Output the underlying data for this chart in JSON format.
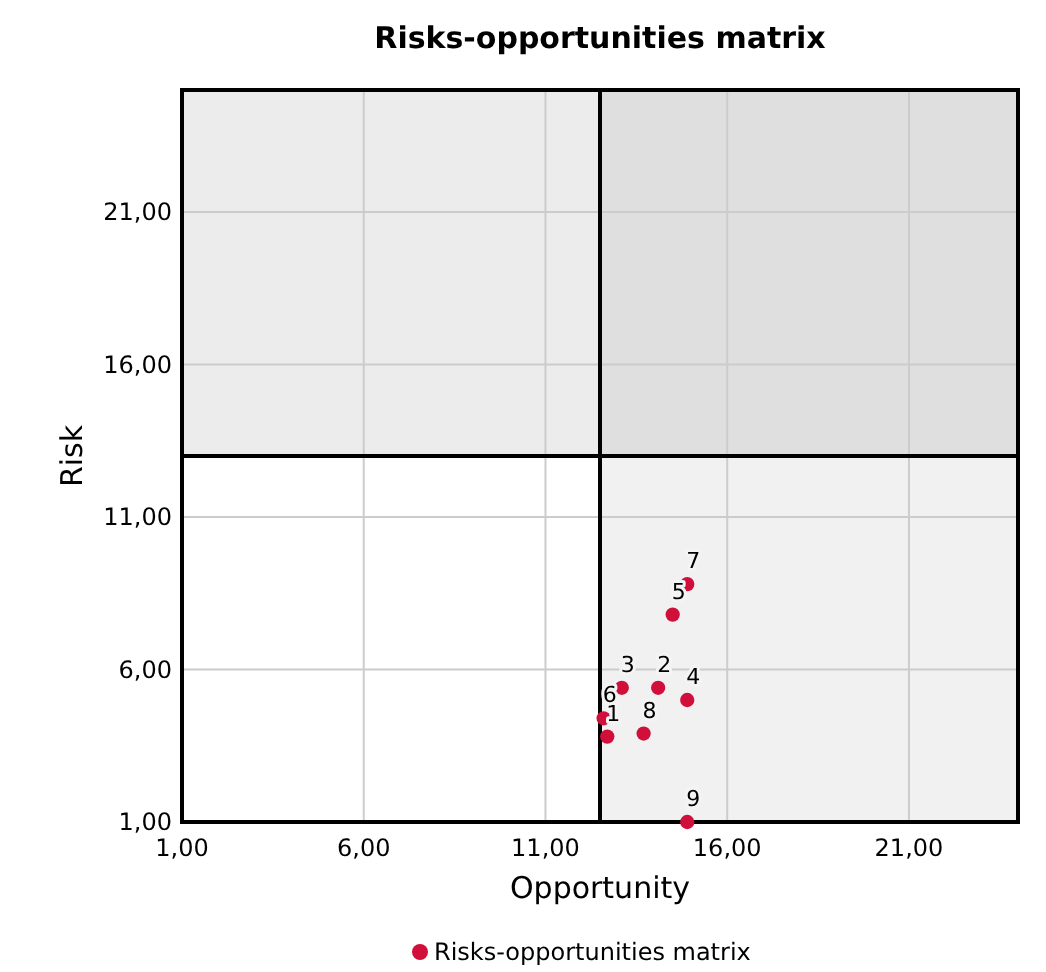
{
  "chart_data": {
    "type": "scatter",
    "title": "Risks-opportunities matrix",
    "xlabel": "Opportunity",
    "ylabel": "Risk",
    "xlim": [
      1,
      24
    ],
    "ylim": [
      1,
      25
    ],
    "xticks": [
      {
        "value": 1,
        "label": "1,00"
      },
      {
        "value": 6,
        "label": "6,00"
      },
      {
        "value": 11,
        "label": "11,00"
      },
      {
        "value": 16,
        "label": "16,00"
      },
      {
        "value": 21,
        "label": "21,00"
      }
    ],
    "yticks": [
      {
        "value": 1,
        "label": "1,00"
      },
      {
        "value": 6,
        "label": "6,00"
      },
      {
        "value": 11,
        "label": "11,00"
      },
      {
        "value": 16,
        "label": "16,00"
      },
      {
        "value": 21,
        "label": "21,00"
      }
    ],
    "series": [
      {
        "name": "Risks-opportunities matrix",
        "color": "#d0103a",
        "x": [
          12.7,
          14.1,
          13.1,
          14.9,
          14.5,
          12.6,
          14.9,
          13.7,
          14.9
        ],
        "values": [
          3.8,
          5.4,
          5.4,
          5.0,
          7.8,
          4.4,
          8.8,
          3.9,
          1.0
        ]
      }
    ],
    "annotations": [
      {
        "text": "1",
        "x": 12.7,
        "y": 3.8
      },
      {
        "text": "2",
        "x": 14.1,
        "y": 5.4
      },
      {
        "text": "3",
        "x": 13.1,
        "y": 5.4
      },
      {
        "text": "4",
        "x": 14.9,
        "y": 5.0
      },
      {
        "text": "5",
        "x": 14.5,
        "y": 7.8
      },
      {
        "text": "6",
        "x": 12.6,
        "y": 4.4
      },
      {
        "text": "7",
        "x": 14.9,
        "y": 8.8
      },
      {
        "text": "8",
        "x": 13.7,
        "y": 3.9
      },
      {
        "text": "9",
        "x": 14.9,
        "y": 1.0
      }
    ],
    "ref_lines": [
      {
        "axis": "x",
        "value": 12.5,
        "color": "#000000"
      },
      {
        "axis": "y",
        "value": 13,
        "color": "#000000"
      }
    ],
    "bands": [
      {
        "axis": "y",
        "from": 13,
        "to": 25,
        "color": "#ececec"
      },
      {
        "axis": "x",
        "from": 12.5,
        "to": 24,
        "color": "#e6e6e6"
      }
    ],
    "grid": true,
    "marker": "circle",
    "legend": "bottom"
  }
}
